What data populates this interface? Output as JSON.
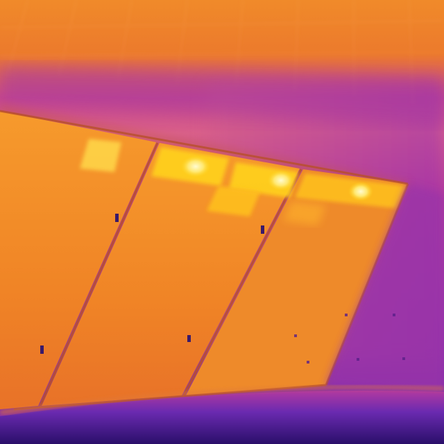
{
  "image": {
    "kind": "thermal-infrared-photo",
    "subject": "solar-panels-with-hotspots",
    "palette": {
      "hot": "#fff6a8",
      "warm": "#ffd21a",
      "mid": "#ff9a1e",
      "orange": "#f37a22",
      "cool": "#c9408a",
      "cold": "#8a2fb0",
      "coldest": "#2a1070"
    }
  }
}
